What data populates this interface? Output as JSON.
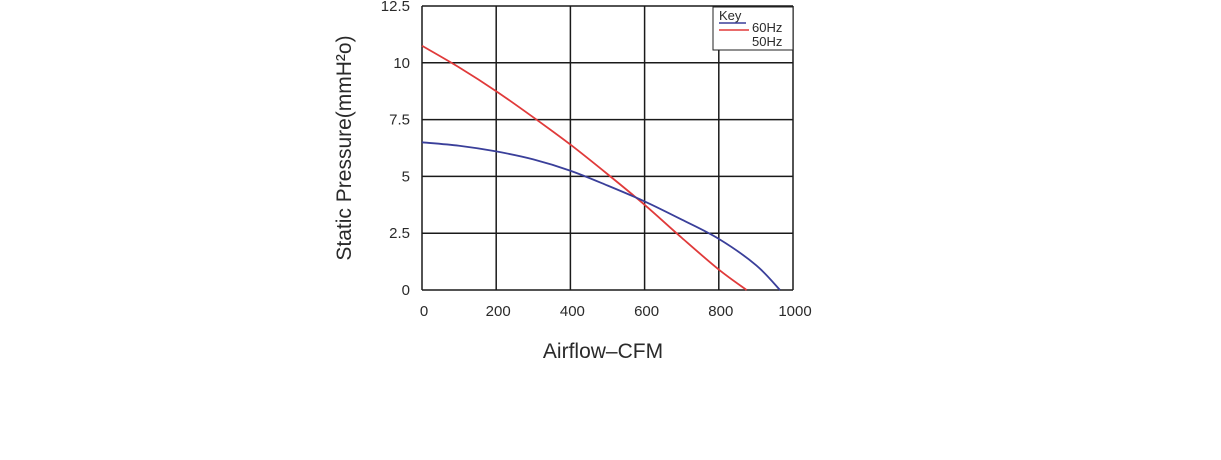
{
  "chart_data": {
    "type": "line",
    "title": "",
    "xlabel": "Airflow–CFM",
    "ylabel": "Static Pressure(mmH²o)",
    "xlim": [
      0,
      1000
    ],
    "ylim": [
      0,
      12.5
    ],
    "x_ticks": [
      "0",
      "200",
      "400",
      "600",
      "800",
      "1000"
    ],
    "y_ticks": [
      "0",
      "2.5",
      "5",
      "7.5",
      "10",
      "12.5"
    ],
    "grid": true,
    "legend": {
      "title": "Key",
      "placement": "top-right",
      "entries": [
        "60Hz",
        "50Hz"
      ]
    },
    "series": [
      {
        "color": "#e03a3a",
        "points": [
          [
            0,
            10.75
          ],
          [
            100,
            9.8
          ],
          [
            200,
            8.75
          ],
          [
            300,
            7.6
          ],
          [
            400,
            6.4
          ],
          [
            500,
            5.1
          ],
          [
            600,
            3.75
          ],
          [
            700,
            2.3
          ],
          [
            800,
            0.9
          ],
          [
            875,
            0
          ]
        ]
      },
      {
        "color": "#3a3f9a",
        "points": [
          [
            0,
            6.5
          ],
          [
            100,
            6.35
          ],
          [
            200,
            6.1
          ],
          [
            300,
            5.75
          ],
          [
            400,
            5.25
          ],
          [
            500,
            4.6
          ],
          [
            600,
            3.9
          ],
          [
            700,
            3.1
          ],
          [
            800,
            2.25
          ],
          [
            900,
            1.1
          ],
          [
            965,
            0
          ]
        ]
      }
    ]
  }
}
